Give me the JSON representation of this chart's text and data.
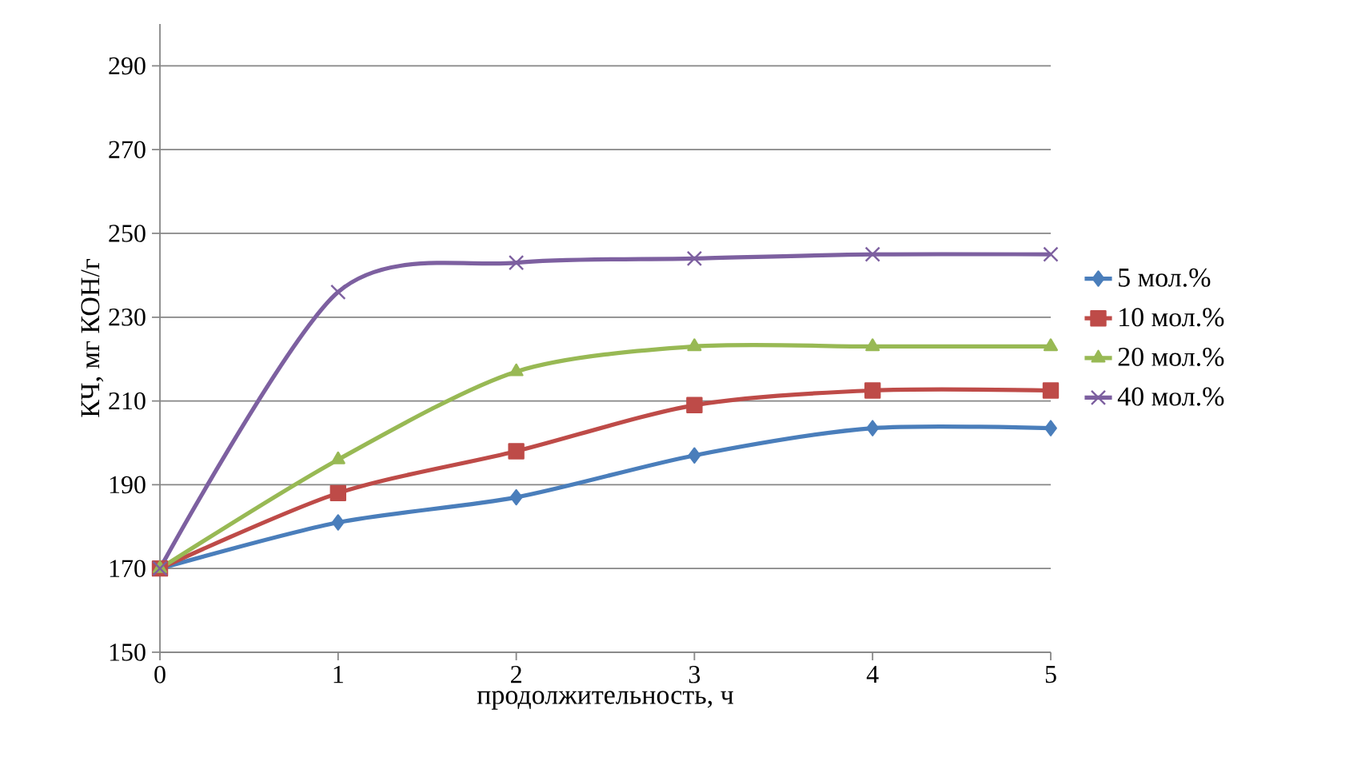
{
  "chart_data": {
    "type": "line",
    "xlabel": "продолжительность, ч",
    "ylabel": "КЧ, мг КОН/г",
    "x": [
      0,
      1,
      2,
      3,
      4,
      5
    ],
    "series": [
      {
        "name": "5 мол.%",
        "color": "#4a7ebb",
        "marker": "diamond",
        "values": [
          170,
          181,
          187,
          197,
          203.5,
          203.5
        ]
      },
      {
        "name": "10 мол.%",
        "color": "#be4b48",
        "marker": "square",
        "values": [
          170,
          188,
          198,
          209,
          212.5,
          212.5
        ]
      },
      {
        "name": "20 мол.%",
        "color": "#98b954",
        "marker": "triangle",
        "values": [
          170,
          196,
          217,
          223,
          223,
          223
        ]
      },
      {
        "name": "40 мол.%",
        "color": "#7d60a0",
        "marker": "cross",
        "values": [
          170,
          236,
          243,
          244,
          245,
          245
        ]
      }
    ],
    "xlim": [
      0,
      5
    ],
    "ylim": [
      150,
      300
    ],
    "xticks": [
      0,
      1,
      2,
      3,
      4,
      5
    ],
    "yticks": [
      150,
      170,
      190,
      210,
      230,
      250,
      270,
      290
    ],
    "grid": "y",
    "legend": "right",
    "line_style": "solid"
  }
}
